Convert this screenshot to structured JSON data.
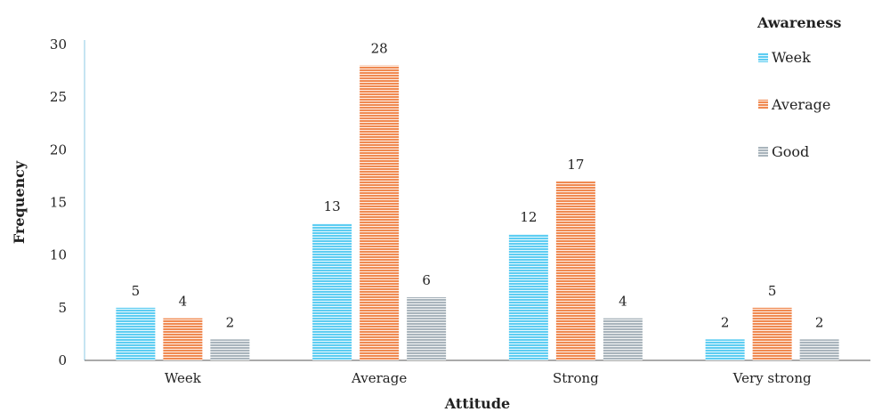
{
  "chart_data": {
    "type": "bar",
    "xlabel": "Attitude",
    "ylabel": "Frequency",
    "ylim": [
      0,
      30
    ],
    "yticks": [
      0,
      5,
      10,
      15,
      20,
      25,
      30
    ],
    "categories": [
      "Week",
      "Average",
      "Strong",
      "Very strong"
    ],
    "legend_title": "Awareness",
    "legend_position": "right",
    "grid": false,
    "series": [
      {
        "name": "Week",
        "values": [
          5,
          13,
          12,
          2
        ],
        "color": "#5ECDF2",
        "stripe": "#ffffff"
      },
      {
        "name": "Average",
        "values": [
          4,
          28,
          17,
          5
        ],
        "color": "#F08A52",
        "stripe": "#ffffff"
      },
      {
        "name": "Good",
        "values": [
          2,
          6,
          4,
          2
        ],
        "color": "#A9B4BC",
        "stripe": "#ffffff"
      }
    ]
  }
}
